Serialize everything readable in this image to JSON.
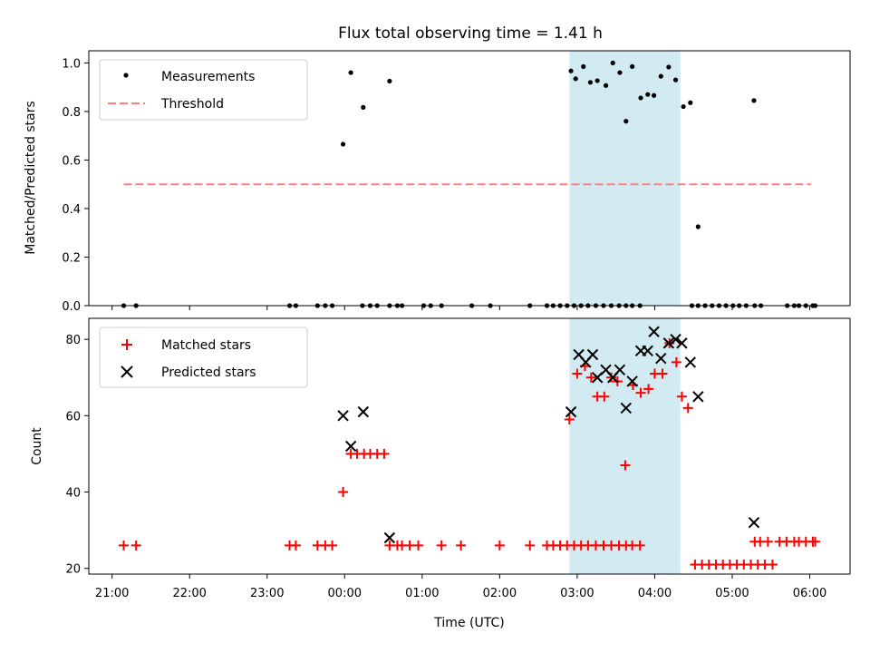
{
  "chart_data": {
    "type": "scatter",
    "title": "Flux total observing time = 1.41 h",
    "xlabel": "Time (UTC)",
    "x_ticks": [
      "21:00",
      "22:00",
      "23:00",
      "00:00",
      "01:00",
      "02:00",
      "03:00",
      "04:00",
      "05:00",
      "06:00"
    ],
    "x_unit": "hours since 21:00 UTC",
    "xlim": [
      -0.3,
      9.52
    ],
    "shaded_interval": {
      "start": 5.9,
      "end": 7.33,
      "color": "#add8e6"
    },
    "colors": {
      "measurements": "#000000",
      "threshold": "#ff7f7f",
      "matched": "#ff0000",
      "predicted": "#000000",
      "shade": "#add8e6"
    },
    "top": {
      "ylabel": "Matched/Predicted stars",
      "ylim": [
        0.0,
        1.05
      ],
      "y_ticks": [
        "0.0",
        "0.2",
        "0.4",
        "0.6",
        "0.8",
        "1.0"
      ],
      "legend": [
        "Measurements",
        "Threshold"
      ],
      "threshold": {
        "value": 0.5,
        "x_start": 0.15,
        "x_end": 9.02
      },
      "measurements": [
        [
          0.15,
          0.0
        ],
        [
          0.31,
          0.0
        ],
        [
          2.29,
          0.0
        ],
        [
          2.37,
          0.0
        ],
        [
          2.65,
          0.0
        ],
        [
          2.75,
          0.0
        ],
        [
          2.84,
          0.0
        ],
        [
          2.98,
          0.665
        ],
        [
          3.08,
          0.96
        ],
        [
          3.23,
          0.0
        ],
        [
          3.33,
          0.0
        ],
        [
          3.42,
          0.0
        ],
        [
          3.58,
          0.0
        ],
        [
          3.68,
          0.0
        ],
        [
          3.74,
          0.0
        ],
        [
          4.02,
          0.0
        ],
        [
          4.11,
          0.0
        ],
        [
          4.25,
          0.0
        ],
        [
          4.64,
          0.0
        ],
        [
          4.88,
          0.0
        ],
        [
          5.39,
          0.0
        ],
        [
          5.61,
          0.0
        ],
        [
          5.69,
          0.0
        ],
        [
          5.78,
          0.0
        ],
        [
          5.87,
          0.0
        ],
        [
          5.96,
          0.0
        ],
        [
          6.05,
          0.0
        ],
        [
          6.14,
          0.0
        ],
        [
          6.24,
          0.0
        ],
        [
          6.34,
          0.0
        ],
        [
          6.44,
          0.0
        ],
        [
          6.54,
          0.0
        ],
        [
          6.63,
          0.0
        ],
        [
          6.71,
          0.0
        ],
        [
          6.81,
          0.0
        ],
        [
          7.48,
          0.0
        ],
        [
          7.56,
          0.0
        ],
        [
          7.65,
          0.0
        ],
        [
          7.74,
          0.0
        ],
        [
          7.83,
          0.0
        ],
        [
          7.92,
          0.0
        ],
        [
          8.01,
          0.0
        ],
        [
          8.09,
          0.0
        ],
        [
          8.18,
          0.0
        ],
        [
          8.29,
          0.0
        ],
        [
          8.37,
          0.0
        ],
        [
          8.71,
          0.0
        ],
        [
          8.8,
          0.0
        ],
        [
          8.86,
          0.0
        ],
        [
          8.95,
          0.0
        ],
        [
          9.04,
          0.0
        ],
        [
          9.07,
          0.0
        ],
        [
          3.24,
          0.817
        ],
        [
          3.58,
          0.925
        ],
        [
          5.92,
          0.967
        ],
        [
          5.98,
          0.935
        ],
        [
          6.08,
          0.985
        ],
        [
          6.17,
          0.92
        ],
        [
          6.26,
          0.927
        ],
        [
          6.37,
          0.907
        ],
        [
          6.46,
          1.0
        ],
        [
          6.55,
          0.96
        ],
        [
          6.63,
          0.76
        ],
        [
          6.71,
          0.985
        ],
        [
          6.82,
          0.856
        ],
        [
          6.91,
          0.87
        ],
        [
          6.99,
          0.866
        ],
        [
          7.08,
          0.945
        ],
        [
          7.18,
          0.983
        ],
        [
          7.27,
          0.93
        ],
        [
          7.37,
          0.82
        ],
        [
          7.46,
          0.836
        ],
        [
          7.56,
          0.325
        ],
        [
          8.28,
          0.845
        ]
      ]
    },
    "bottom": {
      "ylabel": "Count",
      "ylim": [
        18.5,
        85.5
      ],
      "y_ticks": [
        "20",
        "40",
        "60",
        "80"
      ],
      "legend": [
        "Matched stars",
        "Predicted stars"
      ],
      "matched": [
        [
          0.15,
          26
        ],
        [
          0.31,
          26
        ],
        [
          2.29,
          26
        ],
        [
          2.37,
          26
        ],
        [
          2.65,
          26
        ],
        [
          2.75,
          26
        ],
        [
          2.84,
          26
        ],
        [
          2.98,
          40
        ],
        [
          3.08,
          50
        ],
        [
          3.16,
          50
        ],
        [
          3.25,
          50
        ],
        [
          3.33,
          50
        ],
        [
          3.42,
          50
        ],
        [
          3.51,
          50
        ],
        [
          3.58,
          26
        ],
        [
          3.68,
          26
        ],
        [
          3.74,
          26
        ],
        [
          3.84,
          26
        ],
        [
          3.95,
          26
        ],
        [
          4.25,
          26
        ],
        [
          4.5,
          26
        ],
        [
          5.0,
          26
        ],
        [
          5.39,
          26
        ],
        [
          5.61,
          26
        ],
        [
          5.69,
          26
        ],
        [
          5.78,
          26
        ],
        [
          5.87,
          26
        ],
        [
          5.96,
          26
        ],
        [
          6.05,
          26
        ],
        [
          6.14,
          26
        ],
        [
          6.24,
          26
        ],
        [
          6.34,
          26
        ],
        [
          6.44,
          26
        ],
        [
          6.54,
          26
        ],
        [
          6.63,
          26
        ],
        [
          6.71,
          26
        ],
        [
          6.81,
          26
        ],
        [
          5.9,
          59
        ],
        [
          6.0,
          71
        ],
        [
          6.1,
          73
        ],
        [
          6.18,
          70
        ],
        [
          6.26,
          65
        ],
        [
          6.35,
          65
        ],
        [
          6.44,
          70
        ],
        [
          6.52,
          69
        ],
        [
          6.62,
          47
        ],
        [
          6.72,
          68
        ],
        [
          6.82,
          66
        ],
        [
          6.92,
          67
        ],
        [
          7.0,
          71
        ],
        [
          7.1,
          71
        ],
        [
          7.19,
          79
        ],
        [
          7.28,
          74
        ],
        [
          7.35,
          65
        ],
        [
          7.43,
          62
        ],
        [
          7.52,
          21
        ],
        [
          7.61,
          21
        ],
        [
          7.7,
          21
        ],
        [
          7.79,
          21
        ],
        [
          7.88,
          21
        ],
        [
          7.97,
          21
        ],
        [
          8.06,
          21
        ],
        [
          8.15,
          21
        ],
        [
          8.24,
          21
        ],
        [
          8.33,
          21
        ],
        [
          8.42,
          21
        ],
        [
          8.52,
          21
        ],
        [
          8.61,
          27
        ],
        [
          8.7,
          27
        ],
        [
          8.8,
          27
        ],
        [
          8.29,
          27
        ],
        [
          8.36,
          27
        ],
        [
          8.46,
          27
        ],
        [
          8.86,
          27
        ],
        [
          8.95,
          27
        ],
        [
          9.04,
          27
        ],
        [
          9.07,
          27
        ]
      ],
      "predicted": [
        [
          2.98,
          60
        ],
        [
          3.08,
          52
        ],
        [
          3.24,
          61
        ],
        [
          3.58,
          28
        ],
        [
          5.92,
          61
        ],
        [
          6.02,
          76
        ],
        [
          6.11,
          74
        ],
        [
          6.2,
          76
        ],
        [
          6.26,
          70
        ],
        [
          6.37,
          72
        ],
        [
          6.46,
          70
        ],
        [
          6.55,
          72
        ],
        [
          6.63,
          62
        ],
        [
          6.71,
          69
        ],
        [
          6.82,
          77
        ],
        [
          6.91,
          77
        ],
        [
          6.99,
          82
        ],
        [
          7.08,
          75
        ],
        [
          7.18,
          79
        ],
        [
          7.27,
          80
        ],
        [
          7.35,
          79
        ],
        [
          7.46,
          74
        ],
        [
          7.56,
          65
        ],
        [
          8.28,
          32
        ]
      ]
    }
  }
}
